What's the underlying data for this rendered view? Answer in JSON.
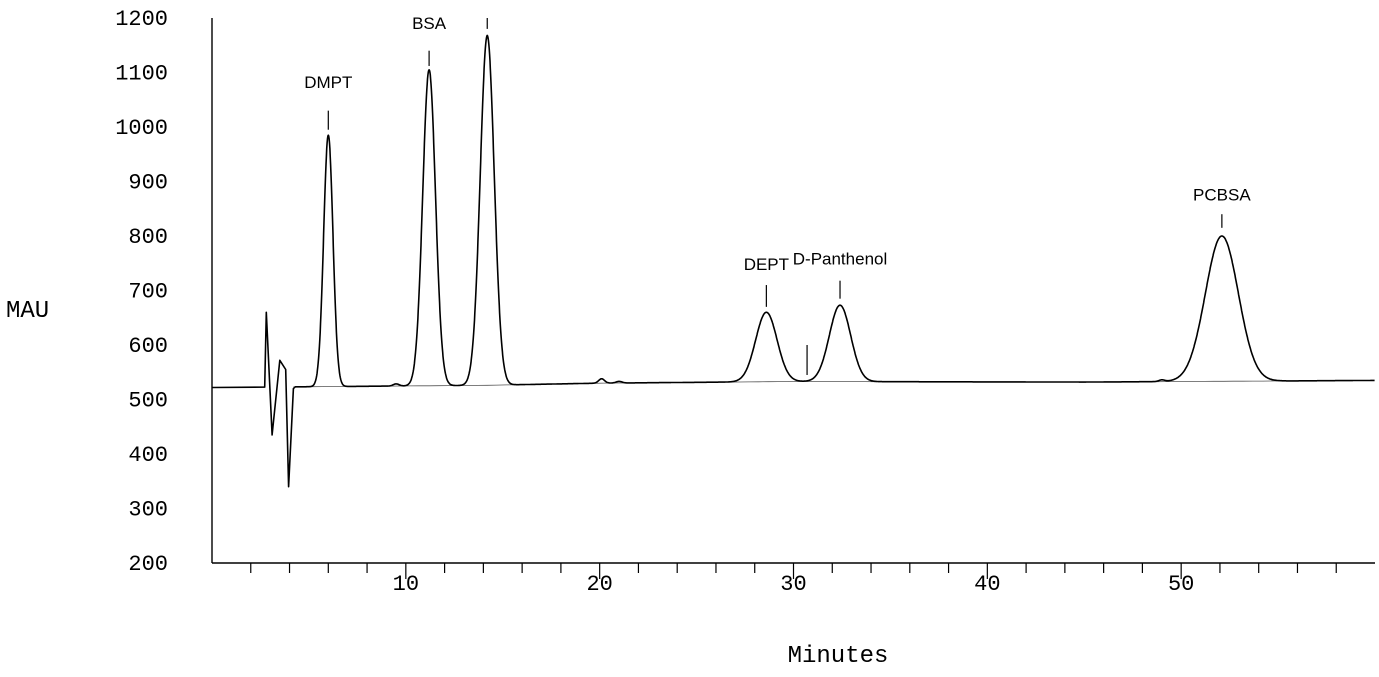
{
  "chart_data": {
    "type": "line",
    "xlabel": "Minutes",
    "ylabel": "MAU",
    "xlim": [
      0,
      60
    ],
    "ylim": [
      200,
      1200
    ],
    "x_ticks": [
      10,
      20,
      30,
      40,
      50
    ],
    "x_tick_labels": [
      "10",
      "20",
      "30",
      "40",
      "50"
    ],
    "x_minor_tick_step": 2,
    "y_ticks": [
      200,
      300,
      400,
      500,
      600,
      700,
      800,
      900,
      1000,
      1100,
      1200
    ],
    "y_tick_labels": [
      "200",
      "300",
      "400",
      "500",
      "600",
      "700",
      "800",
      "900",
      "1000",
      "1100",
      "1200"
    ],
    "grid": false,
    "series": [
      {
        "baseline": [
          [
            0,
            522
          ],
          [
            14,
            526
          ],
          [
            20,
            530
          ],
          [
            30,
            533
          ],
          [
            45,
            532
          ],
          [
            60,
            535
          ]
        ],
        "peaks": [
          {
            "x": 6.0,
            "height": 985,
            "width": 0.24
          },
          {
            "x": 11.2,
            "height": 1105,
            "width": 0.33
          },
          {
            "x": 14.2,
            "height": 1168,
            "width": 0.36
          },
          {
            "x": 28.6,
            "height": 660,
            "width": 0.55
          },
          {
            "x": 32.4,
            "height": 673,
            "width": 0.55
          },
          {
            "x": 52.1,
            "height": 800,
            "width": 0.85
          }
        ],
        "disturbance": [
          {
            "x": 2.8,
            "value": 660
          },
          {
            "x": 3.1,
            "value": 435
          },
          {
            "x": 3.5,
            "value": 572
          },
          {
            "x": 3.8,
            "value": 555
          },
          {
            "x": 3.95,
            "value": 340
          },
          {
            "x": 4.2,
            "value": 520
          }
        ],
        "minor_bumps": [
          {
            "x": 9.5,
            "height": 4
          },
          {
            "x": 20.1,
            "height": 8
          },
          {
            "x": 21.0,
            "height": 3
          },
          {
            "x": 49.0,
            "height": 3
          }
        ]
      }
    ],
    "annotations": [
      {
        "text": "DMPT",
        "x": 6.0,
        "label_y": 1072,
        "tick_top": 1030,
        "tick_bottom": 995
      },
      {
        "text": "BSA",
        "x": 11.2,
        "label_y": 1180,
        "tick_top": 1140,
        "tick_bottom": 1112
      },
      {
        "text": "",
        "x": 14.2,
        "label_y": null,
        "tick_top": 1200,
        "tick_bottom": 1180
      },
      {
        "text": "DEPT",
        "x": 28.6,
        "label_y": 738,
        "tick_top": 710,
        "tick_bottom": 670
      },
      {
        "text": "",
        "x": 30.7,
        "label_y": null,
        "tick_top": 600,
        "tick_bottom": 545
      },
      {
        "text": "D-Panthenol",
        "x": 32.4,
        "label_y": 748,
        "tick_top": 718,
        "tick_bottom": 685
      },
      {
        "text": "PCBSA",
        "x": 52.1,
        "label_y": 865,
        "tick_top": 840,
        "tick_bottom": 815
      }
    ]
  }
}
